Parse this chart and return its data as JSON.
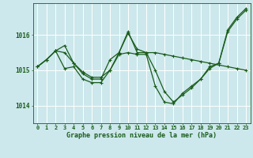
{
  "xlabel": "Graphe pression niveau de la mer (hPa)",
  "background_color": "#cce8ec",
  "grid_color": "#ffffff",
  "line_color": "#1a5c1a",
  "x_labels": [
    "0",
    "1",
    "2",
    "3",
    "4",
    "5",
    "6",
    "7",
    "8",
    "9",
    "10",
    "11",
    "12",
    "13",
    "14",
    "15",
    "16",
    "17",
    "18",
    "19",
    "20",
    "21",
    "22",
    "23"
  ],
  "ylim": [
    1013.5,
    1016.9
  ],
  "yticks": [
    1014,
    1015,
    1016
  ],
  "series1": [
    1015.1,
    1015.3,
    1015.55,
    1015.5,
    1015.2,
    1014.9,
    1014.75,
    1014.75,
    1015.3,
    1015.5,
    1016.1,
    1015.5,
    1015.5,
    1015.5,
    1015.45,
    1015.4,
    1015.35,
    1015.3,
    1015.25,
    1015.2,
    1015.15,
    1015.1,
    1015.05,
    1015.0
  ],
  "series2": [
    1015.1,
    1015.3,
    1015.55,
    1015.7,
    1015.2,
    1014.95,
    1014.8,
    1014.8,
    1015.0,
    1015.5,
    1016.05,
    1015.6,
    1015.5,
    1015.0,
    1014.4,
    1014.1,
    1014.3,
    1014.5,
    1014.75,
    1015.1,
    1015.2,
    1016.15,
    1016.5,
    1016.75
  ],
  "series3": [
    1015.1,
    1015.3,
    1015.55,
    1015.05,
    1015.1,
    1014.75,
    1014.65,
    1014.65,
    1015.0,
    1015.45,
    1015.5,
    1015.45,
    1015.45,
    1014.55,
    1014.1,
    1014.05,
    1014.35,
    1014.55,
    1014.75,
    1015.05,
    1015.2,
    1016.1,
    1016.45,
    1016.7
  ],
  "figsize": [
    3.2,
    2.0
  ],
  "dpi": 100
}
